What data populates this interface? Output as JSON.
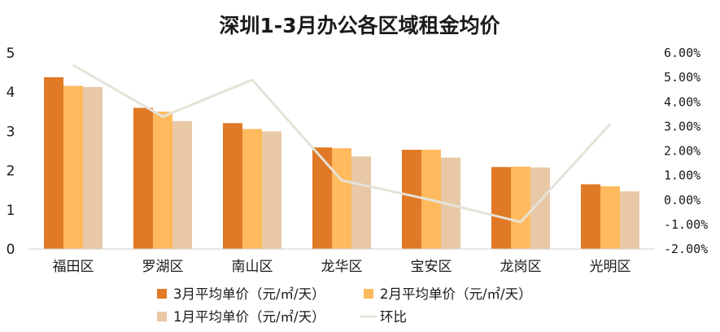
{
  "chart_data": {
    "type": "bar",
    "title": "深圳1-3月办公各区域租金均价",
    "categories": [
      "福田区",
      "罗湖区",
      "南山区",
      "龙华区",
      "宝安区",
      "龙岗区",
      "光明区"
    ],
    "series": [
      {
        "name": "3月平均单价（元/㎡/天）",
        "type": "bar",
        "axis": "left",
        "color": "#E07A26",
        "values": [
          4.38,
          3.6,
          3.21,
          2.59,
          2.53,
          2.09,
          1.65
        ]
      },
      {
        "name": "2月平均单价（元/㎡/天）",
        "type": "bar",
        "axis": "left",
        "color": "#FFBA5E",
        "values": [
          4.16,
          3.5,
          3.06,
          2.57,
          2.53,
          2.1,
          1.6
        ]
      },
      {
        "name": "1月平均单价（元/㎡/天）",
        "type": "bar",
        "axis": "left",
        "color": "#E8C8A6",
        "values": [
          4.13,
          3.26,
          3.0,
          2.36,
          2.33,
          2.08,
          1.47
        ]
      },
      {
        "name": "环比",
        "type": "line",
        "axis": "right",
        "color": "#E6E2D8",
        "values": [
          5.5,
          3.4,
          4.9,
          0.8,
          0.0,
          -0.9,
          3.1
        ]
      }
    ],
    "left_axis": {
      "min": 0,
      "max": 5,
      "ticks": [
        "0",
        "1",
        "2",
        "3",
        "4",
        "5"
      ]
    },
    "right_axis": {
      "min": -2,
      "max": 6,
      "ticks": [
        "-2.00%",
        "-1.00%",
        "0.00%",
        "1.00%",
        "2.00%",
        "3.00%",
        "4.00%",
        "5.00%",
        "6.00%"
      ]
    },
    "grid": false,
    "legend_position": "bottom"
  }
}
